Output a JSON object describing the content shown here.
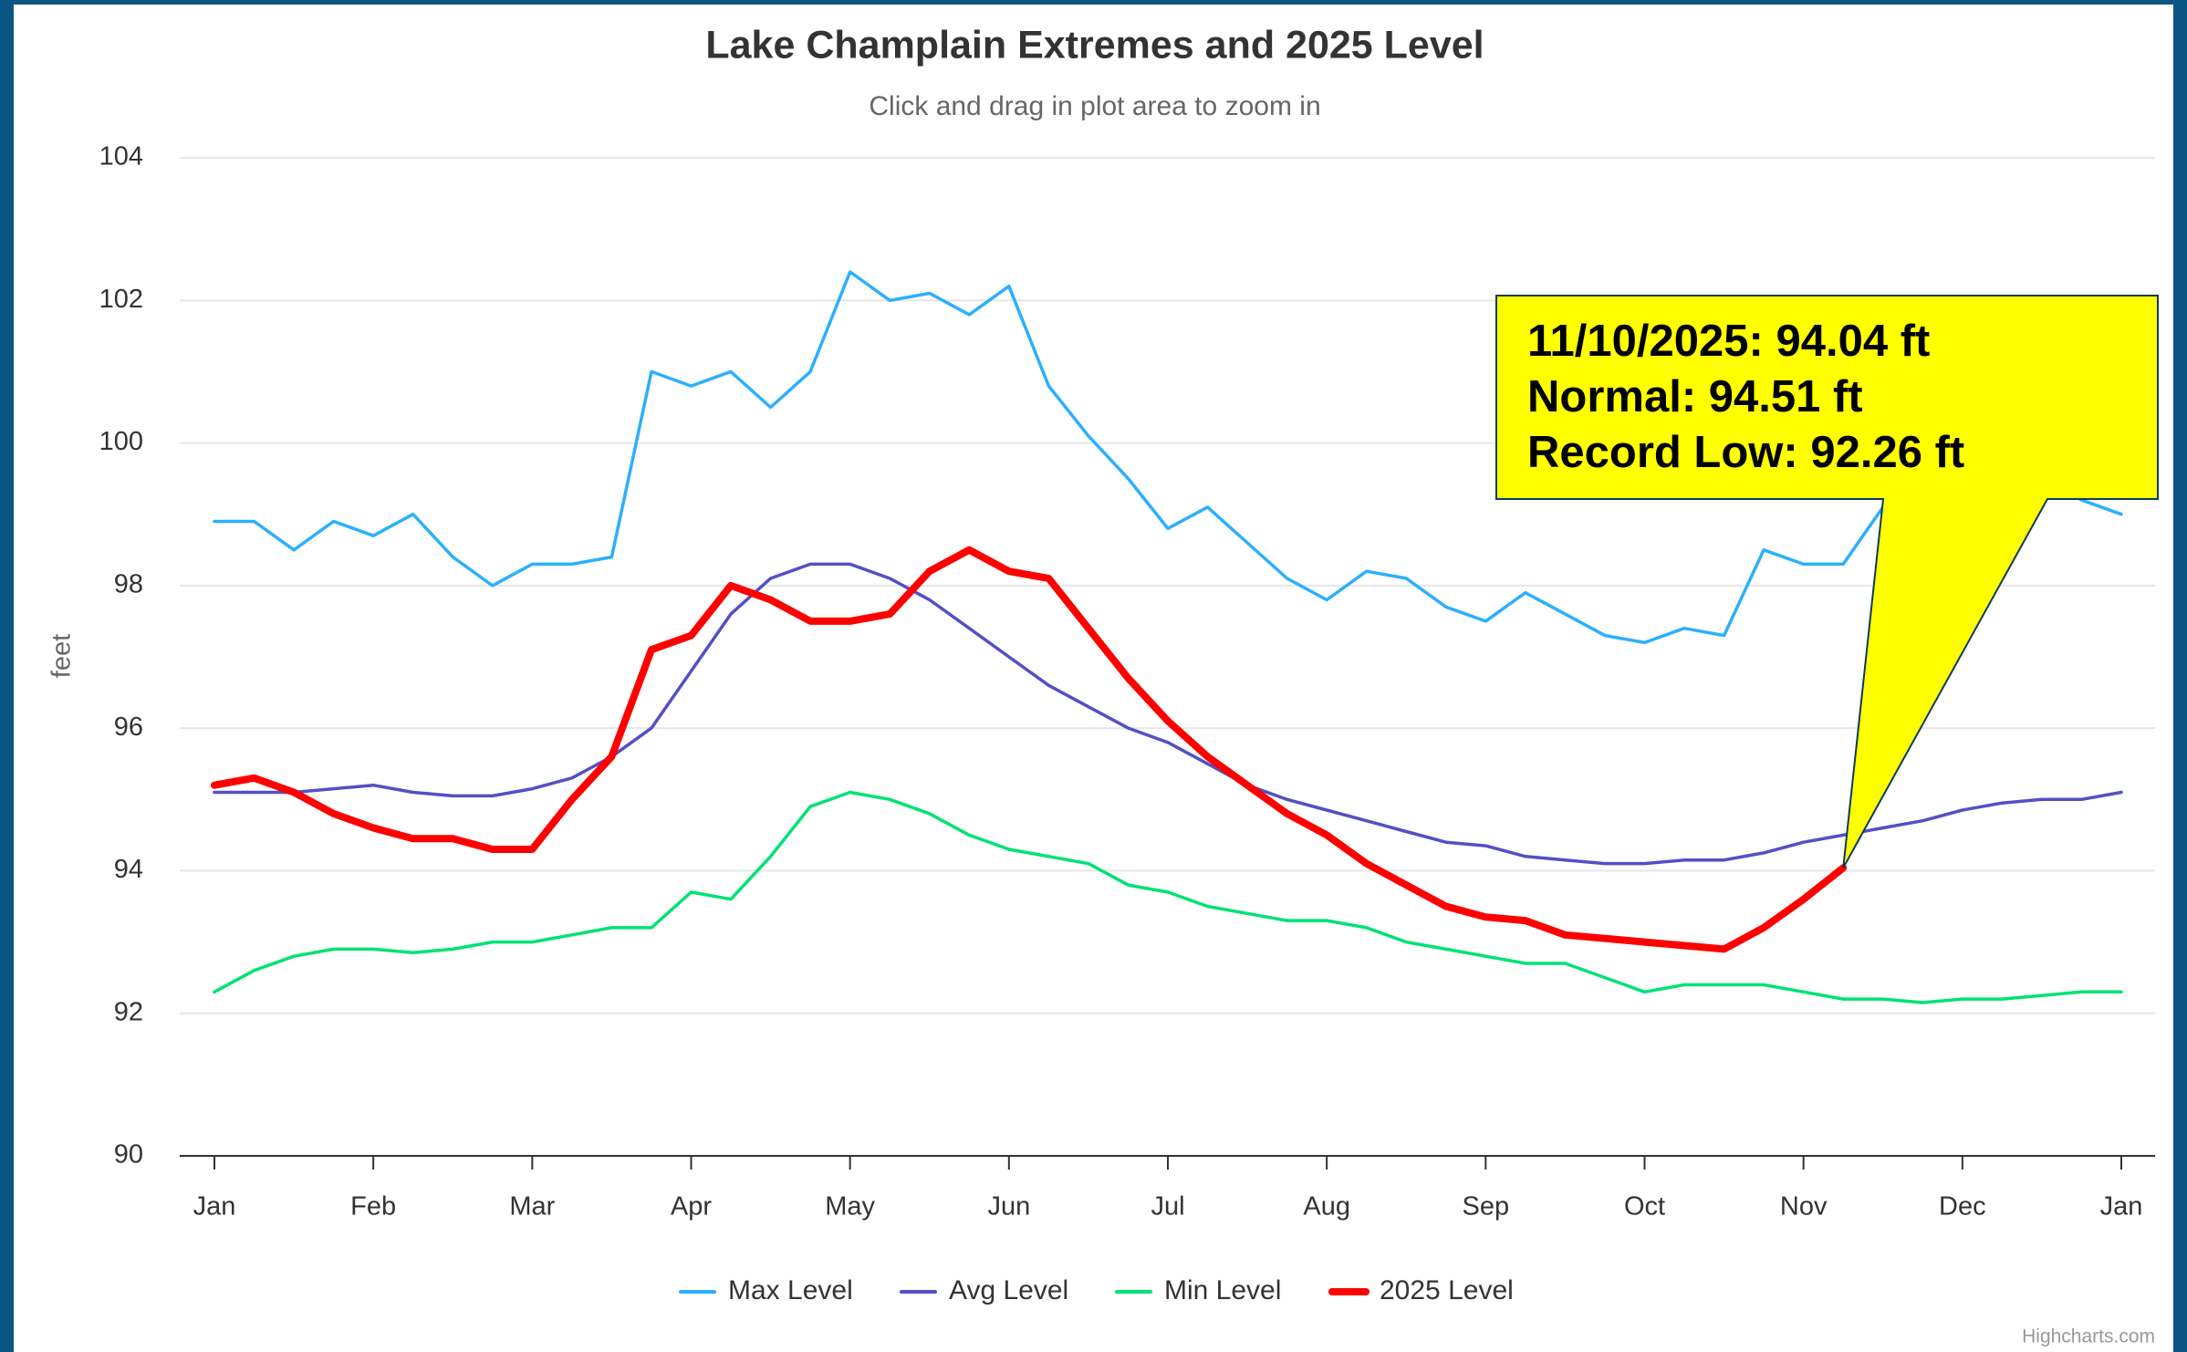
{
  "chart_data": {
    "type": "line",
    "title": "Lake Champlain Extremes and 2025 Level",
    "subtitle": "Click and drag in plot area to zoom in",
    "y_label": "feet",
    "credits": "Highcharts.com",
    "annotations": [
      "11/10/2025: 94.04 ft",
      "Normal: 94.51 ft",
      "Record Low: 92.26 ft"
    ],
    "categories": [
      "Jan",
      null,
      null,
      null,
      "Feb",
      null,
      null,
      null,
      "Mar",
      null,
      null,
      null,
      "Apr",
      null,
      null,
      null,
      "May",
      null,
      null,
      null,
      "Jun",
      null,
      null,
      null,
      "Jul",
      null,
      null,
      null,
      "Aug",
      null,
      null,
      null,
      "Sep",
      null,
      null,
      null,
      "Oct",
      null,
      null,
      null,
      "Nov",
      null,
      null,
      null,
      "Dec",
      null,
      null,
      null,
      "Jan"
    ],
    "ylim": [
      90,
      104
    ],
    "yticks": [
      90,
      92,
      94,
      96,
      98,
      100,
      102,
      104
    ],
    "grid": true,
    "series": [
      {
        "name": "Max Level",
        "color": "#2caffe",
        "values": [
          98.9,
          98.9,
          98.5,
          98.9,
          98.7,
          99.0,
          98.4,
          98.0,
          98.3,
          98.3,
          98.4,
          101.0,
          100.8,
          101.0,
          100.5,
          101.0,
          102.4,
          102.0,
          102.1,
          101.8,
          102.2,
          100.8,
          100.1,
          99.5,
          98.8,
          99.1,
          98.6,
          98.1,
          97.8,
          98.2,
          98.1,
          97.7,
          97.5,
          97.9,
          97.6,
          97.3,
          97.2,
          97.4,
          97.3,
          98.5,
          98.3,
          98.3,
          99.1,
          99.3,
          99.5,
          99.6,
          99.5,
          99.2,
          99.0
        ]
      },
      {
        "name": "Avg Level",
        "color": "#544fc5",
        "values": [
          95.1,
          95.1,
          95.1,
          95.15,
          95.2,
          95.1,
          95.05,
          95.05,
          95.15,
          95.3,
          95.6,
          96.0,
          96.8,
          97.6,
          98.1,
          98.3,
          98.3,
          98.1,
          97.8,
          97.4,
          97.0,
          96.6,
          96.3,
          96.0,
          95.8,
          95.5,
          95.2,
          95.0,
          94.85,
          94.7,
          94.55,
          94.4,
          94.35,
          94.2,
          94.15,
          94.1,
          94.1,
          94.15,
          94.15,
          94.25,
          94.4,
          94.5,
          94.6,
          94.7,
          94.85,
          94.95,
          95.0,
          95.0,
          95.1
        ]
      },
      {
        "name": "Min Level",
        "color": "#00e272",
        "values": [
          92.3,
          92.6,
          92.8,
          92.9,
          92.9,
          92.85,
          92.9,
          93.0,
          93.0,
          93.1,
          93.2,
          93.2,
          93.7,
          93.6,
          94.2,
          94.9,
          95.1,
          95.0,
          94.8,
          94.5,
          94.3,
          94.2,
          94.1,
          93.8,
          93.7,
          93.5,
          93.4,
          93.3,
          93.3,
          93.2,
          93.0,
          92.9,
          92.8,
          92.7,
          92.7,
          92.5,
          92.3,
          92.4,
          92.4,
          92.4,
          92.3,
          92.2,
          92.2,
          92.15,
          92.2,
          92.2,
          92.25,
          92.3,
          92.3
        ]
      },
      {
        "name": "2025 Level",
        "color": "#ff0000",
        "values": [
          95.2,
          95.3,
          95.1,
          94.8,
          94.6,
          94.45,
          94.45,
          94.3,
          94.3,
          95.0,
          95.6,
          97.1,
          97.3,
          98.0,
          97.8,
          97.5,
          97.5,
          97.6,
          98.2,
          98.5,
          98.2,
          98.1,
          97.4,
          96.7,
          96.1,
          95.6,
          95.2,
          94.8,
          94.5,
          94.1,
          93.8,
          93.5,
          93.35,
          93.3,
          93.1,
          93.05,
          93.0,
          92.95,
          92.9,
          93.2,
          93.6,
          94.04,
          null,
          null,
          null,
          null,
          null,
          null,
          null
        ]
      }
    ]
  }
}
